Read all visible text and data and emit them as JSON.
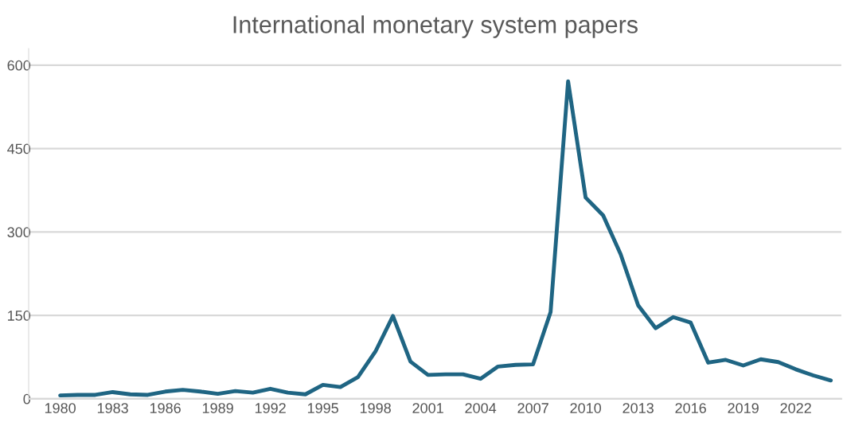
{
  "chart_data": {
    "type": "line",
    "title": "International monetary system papers",
    "x": [
      1980,
      1981,
      1982,
      1983,
      1984,
      1985,
      1986,
      1987,
      1988,
      1989,
      1990,
      1991,
      1992,
      1993,
      1994,
      1995,
      1996,
      1997,
      1998,
      1999,
      2000,
      2001,
      2002,
      2003,
      2004,
      2005,
      2006,
      2007,
      2008,
      2009,
      2010,
      2011,
      2012,
      2013,
      2014,
      2015,
      2016,
      2017,
      2018,
      2019,
      2020,
      2021,
      2022,
      2023,
      2024
    ],
    "series": [
      {
        "color": "#1f6583",
        "values": [
          6,
          7,
          7,
          12,
          8,
          7,
          13,
          16,
          13,
          9,
          14,
          11,
          18,
          11,
          8,
          25,
          21,
          39,
          85,
          149,
          67,
          43,
          44,
          44,
          36,
          58,
          61,
          62,
          156,
          571,
          362,
          330,
          260,
          168,
          127,
          147,
          137,
          65,
          70,
          60,
          71,
          66,
          53,
          42,
          33
        ]
      }
    ],
    "xlim": [
      1978.2,
      2024.6
    ],
    "xticks": [
      1980,
      1983,
      1986,
      1989,
      1992,
      1995,
      1998,
      2001,
      2004,
      2007,
      2010,
      2013,
      2016,
      2019,
      2022
    ],
    "ylim": [
      0,
      630
    ],
    "yticks": [
      0,
      150,
      300,
      450,
      600
    ],
    "grid": "y",
    "marker": "none",
    "line_style": "solid"
  }
}
